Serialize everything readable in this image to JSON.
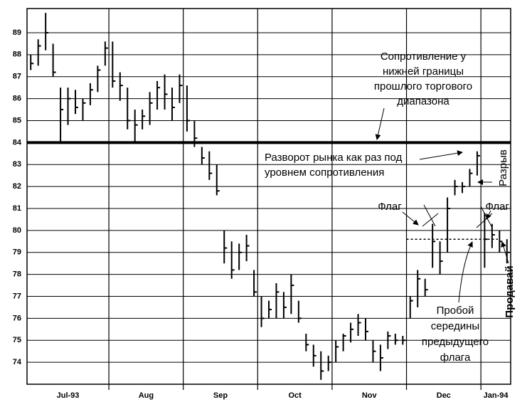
{
  "chart_data": {
    "type": "ohlc",
    "ylim": [
      73,
      90.1
    ],
    "yticks": [
      74,
      75,
      76,
      77,
      78,
      79,
      80,
      81,
      82,
      83,
      84,
      85,
      86,
      87,
      88,
      89
    ],
    "grid": true,
    "color": "#000000",
    "resistance_level": 84,
    "midpoint_level": 79.6,
    "months": [
      {
        "label": "Jul-93",
        "high": [
          88,
          88.7,
          89.9,
          88.5,
          86.5,
          86.5,
          86.4,
          86,
          86.7,
          87.5,
          88.6
        ],
        "low": [
          87.3,
          87.5,
          88.2,
          87,
          84,
          84.8,
          85.3,
          85,
          85.7,
          86.3,
          87.5
        ],
        "close": [
          87.6,
          88.4,
          89,
          87.2,
          85.5,
          86,
          85.6,
          85.8,
          86.4,
          87.3,
          88.3
        ]
      },
      {
        "label": "Aug",
        "high": [
          88.6,
          87.2,
          86.5,
          85.5,
          85.5,
          86.3,
          86.8,
          87.1,
          86.5,
          87.1
        ],
        "low": [
          86.5,
          85.9,
          84.6,
          84,
          84.6,
          84.8,
          85.5,
          85.5,
          85,
          85.8
        ],
        "close": [
          86.8,
          86.6,
          85,
          84.8,
          85.2,
          85.8,
          86.5,
          86.2,
          85.6,
          86.6
        ]
      },
      {
        "label": "Sep",
        "high": [
          86.6,
          85,
          83.8,
          83.6,
          83,
          80,
          79.5,
          79.4,
          79.8,
          78.2
        ],
        "low": [
          84.5,
          83.8,
          83,
          82.3,
          81.6,
          78.5,
          77.8,
          78.2,
          78.6,
          77
        ],
        "close": [
          85,
          84.2,
          83.3,
          82.6,
          81.8,
          79.2,
          78.2,
          79,
          79.3,
          77.2
        ]
      },
      {
        "label": "Oct",
        "high": [
          77,
          76.8,
          77.6,
          77.2,
          78,
          76.8,
          75.3,
          74.8,
          74.5,
          74.3
        ],
        "low": [
          75.6,
          76,
          76,
          76,
          76.2,
          75.8,
          74.5,
          73.8,
          73.2,
          73.6
        ],
        "close": [
          76,
          76.4,
          77.2,
          76.5,
          77.5,
          76,
          74.8,
          74.3,
          73.6,
          74
        ]
      },
      {
        "label": "Nov",
        "high": [
          75,
          75.3,
          75.8,
          76.2,
          76,
          75,
          74.8,
          75.4,
          75.3,
          75.2
        ],
        "low": [
          74,
          74.5,
          74.9,
          75.2,
          75,
          74,
          73.6,
          74.6,
          74.8,
          74.8
        ],
        "close": [
          74.7,
          75.2,
          75.5,
          75.8,
          75.4,
          74.5,
          74.2,
          75.2,
          75,
          75
        ]
      },
      {
        "label": "Dec",
        "high": [
          77,
          78.2,
          77.8,
          80.3,
          79.5,
          81.5,
          82.3,
          82.2,
          82.8,
          83.6
        ],
        "low": [
          76,
          76.5,
          77,
          78.3,
          78,
          79,
          81.6,
          81.7,
          82,
          82.5
        ],
        "close": [
          76.8,
          77.8,
          77.3,
          79.5,
          78.6,
          81,
          82,
          82,
          82.6,
          83.4
        ]
      },
      {
        "label": "Jan-94",
        "high": [
          80.8,
          80.3,
          80,
          79.6
        ],
        "low": [
          78.3,
          79.2,
          79,
          78.5
        ],
        "close": [
          79.6,
          79.8,
          79.5,
          79
        ]
      }
    ],
    "annotations": [
      {
        "lines": [
          "Сопротивление у",
          "нижней границы",
          "прошлого торгового",
          "диапазона"
        ]
      },
      {
        "lines": [
          "Разворот рынка как раз под",
          "уровнем сопротивления"
        ]
      },
      {
        "lines": [
          "Флаг"
        ]
      },
      {
        "lines": [
          "Флаг"
        ]
      },
      {
        "lines": [
          "Разрыв"
        ]
      },
      {
        "lines": [
          "Продавай"
        ]
      },
      {
        "lines": [
          "Пробой",
          "середины",
          "предыдущего",
          "флага"
        ]
      }
    ]
  }
}
